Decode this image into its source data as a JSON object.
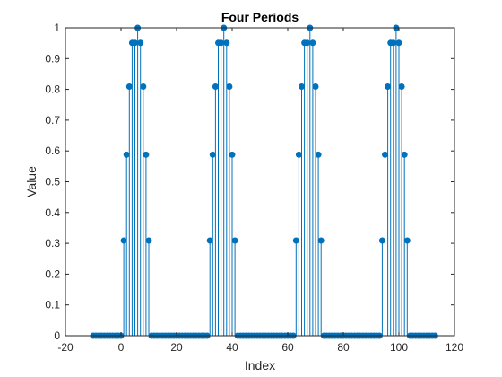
{
  "chart_data": {
    "type": "stem",
    "title": "Four Periods",
    "xlabel": "Index",
    "ylabel": "Value",
    "xlim": [
      -20,
      120
    ],
    "ylim": [
      0,
      1
    ],
    "xticks": [
      -20,
      0,
      20,
      40,
      60,
      80,
      100,
      120
    ],
    "yticks": [
      0,
      0.1,
      0.2,
      0.3,
      0.4,
      0.5,
      0.6,
      0.7,
      0.8,
      0.9,
      1
    ],
    "grid": false,
    "box": true,
    "color": "#0072BD",
    "period": 31,
    "periods": 4,
    "x_start": -10,
    "period_values": [
      0,
      0,
      0,
      0,
      0,
      0,
      0,
      0,
      0,
      0,
      0,
      0.309,
      0.588,
      0.809,
      0.951,
      0.951,
      1.0,
      0.951,
      0.809,
      0.588,
      0.309,
      0,
      0,
      0,
      0,
      0,
      0,
      0,
      0,
      0,
      0
    ]
  }
}
